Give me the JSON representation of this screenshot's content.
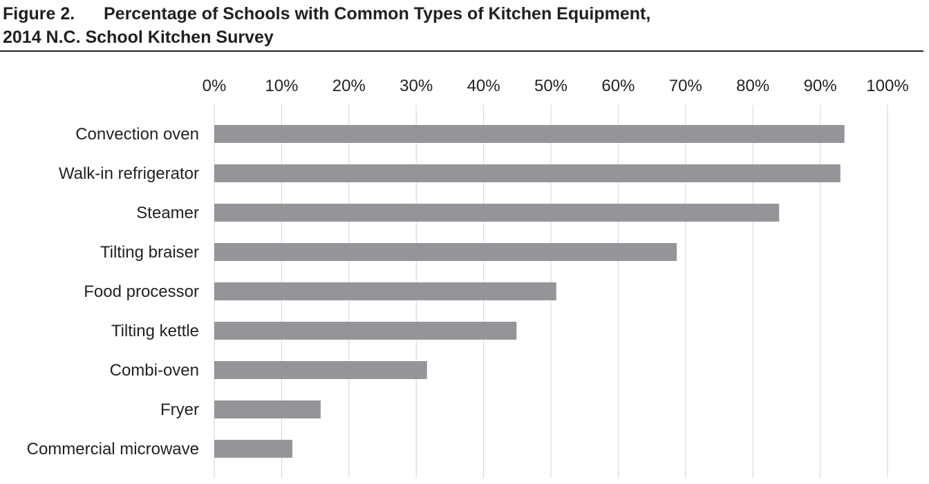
{
  "figure": {
    "label": "Figure 2.",
    "title_line1": "Percentage of Schools with Common Types of Kitchen Equipment,",
    "title_line2": "2014 N.C. School Kitchen Survey"
  },
  "chart_data": {
    "type": "bar",
    "orientation": "horizontal",
    "categories": [
      "Convection oven",
      "Walk-in refrigerator",
      "Steamer",
      "Tilting braiser",
      "Food processor",
      "Tilting kettle",
      "Combi-oven",
      "Fryer",
      "Commercial microwave"
    ],
    "values": [
      93.6,
      93.0,
      83.9,
      68.7,
      50.8,
      44.9,
      31.6,
      15.8,
      11.6
    ],
    "xlim": [
      0,
      100
    ],
    "xticks": [
      0,
      10,
      20,
      30,
      40,
      50,
      60,
      70,
      80,
      90,
      100
    ],
    "tick_labels": [
      "0%",
      "10%",
      "20%",
      "30%",
      "40%",
      "50%",
      "60%",
      "70%",
      "80%",
      "90%",
      "100%"
    ],
    "axis_position": "top",
    "grid": true,
    "bar_color": "#939598",
    "grid_color": "#d1d3d4",
    "text_color": "#231f20"
  }
}
